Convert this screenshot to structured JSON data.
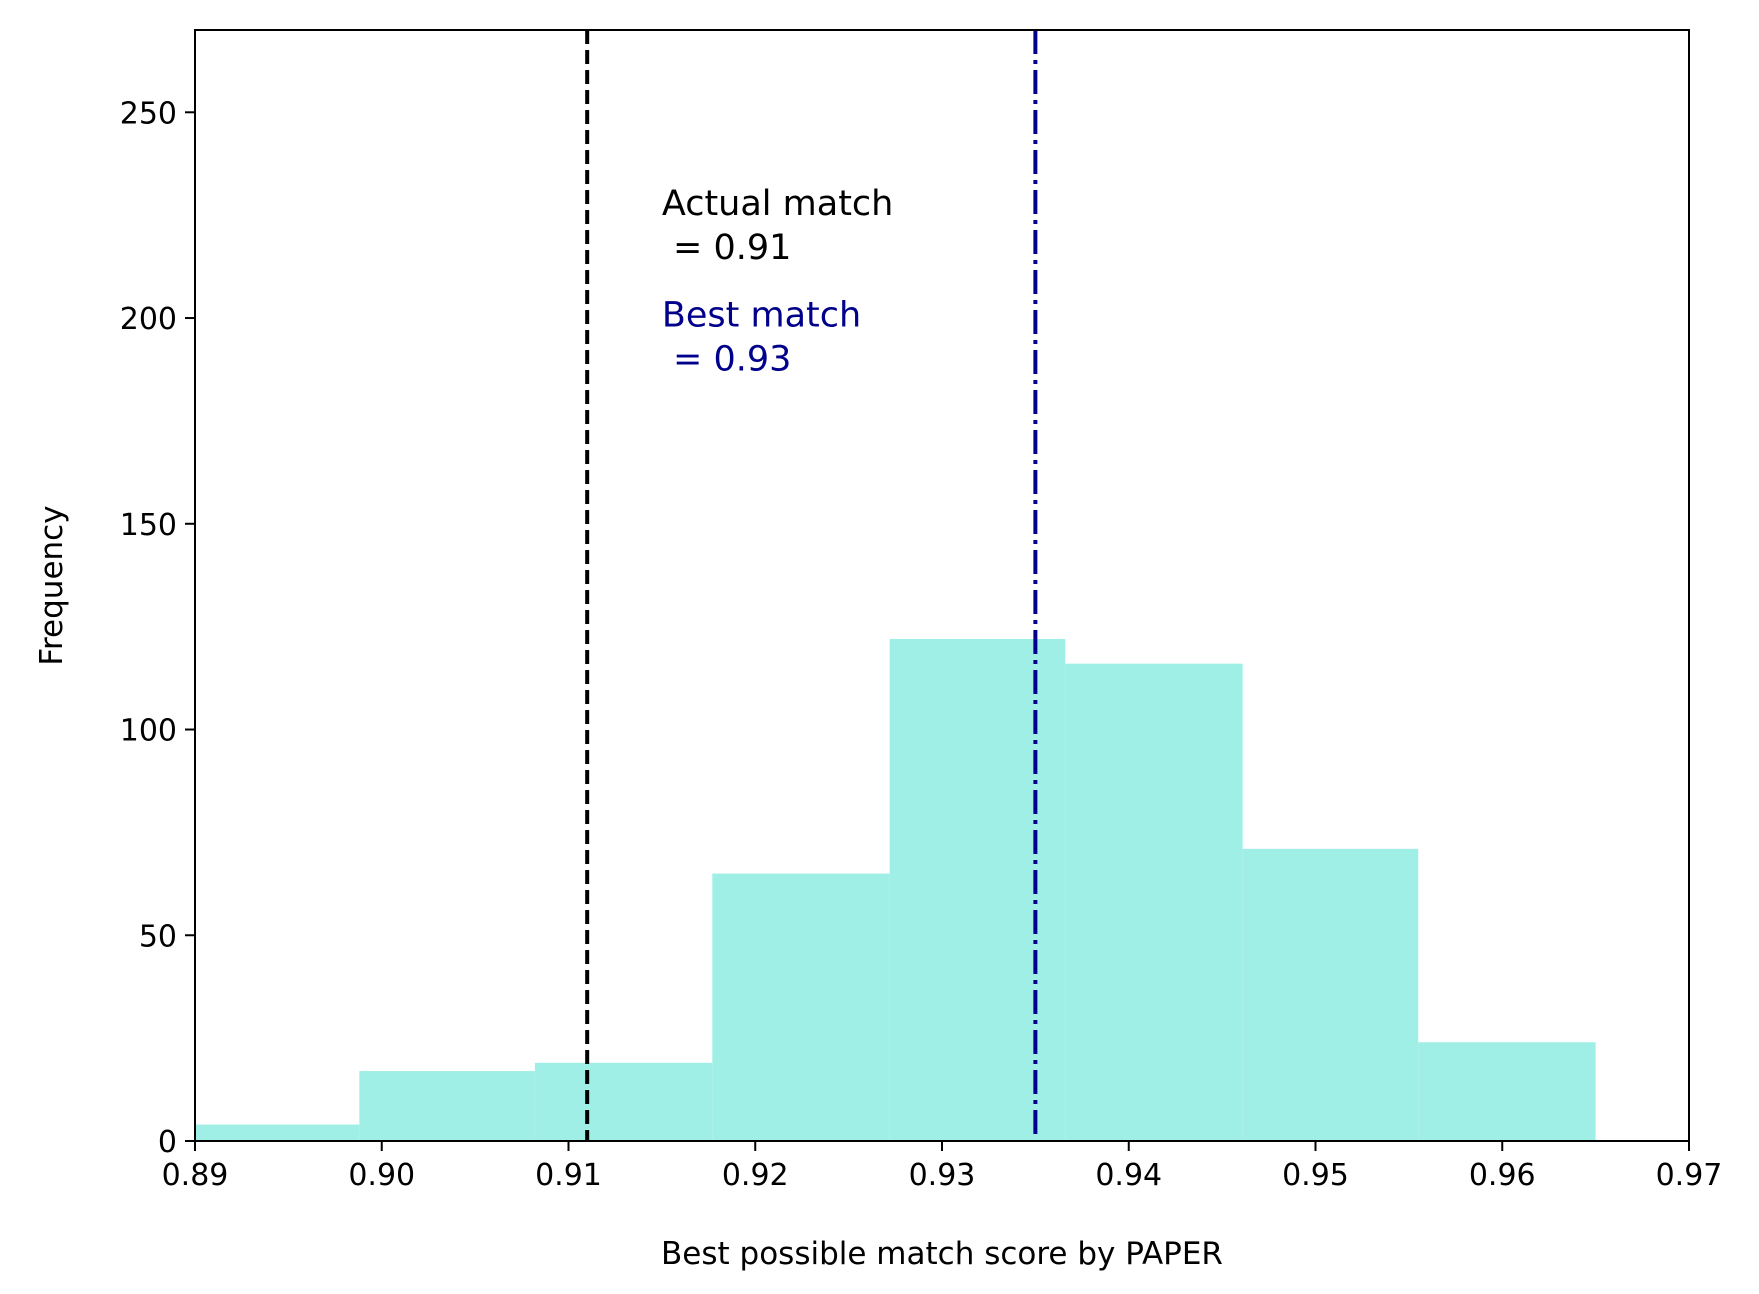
{
  "chart_data": {
    "type": "histogram",
    "xlabel": "Best possible match score by PAPER",
    "ylabel": "Frequency",
    "xlim": [
      0.89,
      0.97
    ],
    "ylim": [
      0,
      270
    ],
    "xticks": [
      0.89,
      0.9,
      0.91,
      0.92,
      0.93,
      0.94,
      0.95,
      0.96,
      0.97
    ],
    "xtick_labels": [
      "0.89",
      "0.90",
      "0.91",
      "0.92",
      "0.93",
      "0.94",
      "0.95",
      "0.96",
      "0.97"
    ],
    "yticks": [
      0,
      50,
      100,
      150,
      200,
      250
    ],
    "ytick_labels": [
      "0",
      "50",
      "100",
      "150",
      "200",
      "250"
    ],
    "bins": [
      {
        "x0": 0.89,
        "x1": 0.8988,
        "count": 4
      },
      {
        "x0": 0.8988,
        "x1": 0.9082,
        "count": 17
      },
      {
        "x0": 0.9082,
        "x1": 0.9177,
        "count": 19
      },
      {
        "x0": 0.9177,
        "x1": 0.9272,
        "count": 65
      },
      {
        "x0": 0.9272,
        "x1": 0.9366,
        "count": 122
      },
      {
        "x0": 0.9366,
        "x1": 0.9461,
        "count": 116
      },
      {
        "x0": 0.9461,
        "x1": 0.9555,
        "count": 71
      },
      {
        "x0": 0.9555,
        "x1": 0.965,
        "count": 24
      }
    ],
    "bar_color": "#a0efe6",
    "reference_lines": [
      {
        "name": "actual-match",
        "x": 0.911,
        "style": "dashed",
        "color": "#000000"
      },
      {
        "name": "best-match",
        "x": 0.935,
        "style": "dashdot",
        "color": "#00008b"
      }
    ],
    "annotations": [
      {
        "name": "actual-match",
        "lines": [
          "Actual match",
          " = 0.91"
        ],
        "x": 0.915,
        "y": 225,
        "color": "#000000"
      },
      {
        "name": "best-match",
        "lines": [
          "Best match",
          " = 0.93"
        ],
        "x": 0.915,
        "y": 198,
        "color": "#00008b"
      }
    ],
    "grid": false
  }
}
